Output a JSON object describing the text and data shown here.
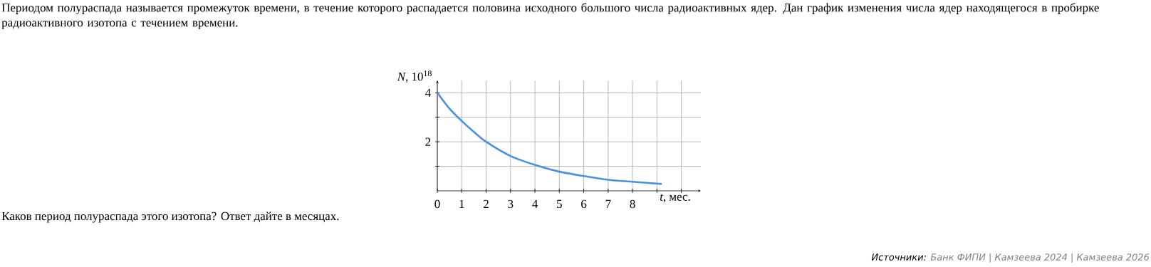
{
  "chart_data": {
    "type": "line",
    "title": "Периодом полураспада называется промежуток времени, в течение которого распадается половина исходного большого числа радиоактивных ядер. Дан график изменения числа ядер находящегося в пробирке радиоактивного изотопа с течением времени.",
    "xlabel": "*t*, мес.",
    "ylabel": "*N*, 10$^{18}$",
    "annotations": [
      "Каков период полураспада этого изотопа? Ответ дайте в месяцах.",
      "Источники:",
      "Банк ФИПИ | Камзеева 2024 | Камзеева 2026"
    ],
    "x": [
      0,
      0.5,
      1,
      1.5,
      2,
      3,
      4,
      5,
      6,
      7,
      8,
      9.2
    ],
    "series": [
      {
        "color": "#4a8fe0",
        "values": [
          4,
          3.35,
          2.85,
          2.4,
          2.0,
          1.42,
          1.06,
          0.78,
          0.6,
          0.45,
          0.37,
          0.28
        ]
      }
    ],
    "xlim": [
      0,
      10.8
    ],
    "ylim": [
      0,
      4.5
    ],
    "xticks": [
      0,
      1,
      2,
      3,
      4,
      5,
      6,
      7,
      8,
      {
        "value": 9,
        "label": null
      },
      {
        "value": 10,
        "label": null
      }
    ],
    "yticks": [
      {
        "value": 1,
        "label": null
      },
      2,
      {
        "value": 3,
        "label": null
      },
      4
    ],
    "grid": true
  }
}
